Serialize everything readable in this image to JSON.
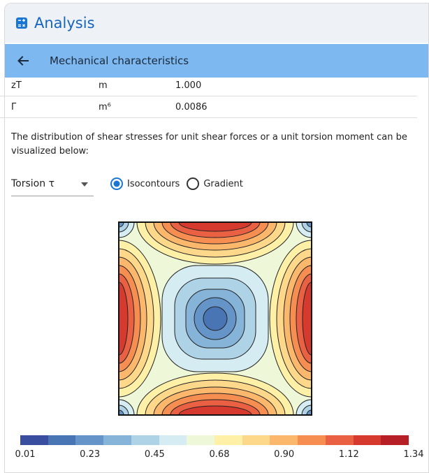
{
  "app": {
    "title": "Analysis",
    "icon": "calculator-icon"
  },
  "header": {
    "back_icon": "arrow-left-icon",
    "title": "Mechanical characteristics"
  },
  "properties": [
    {
      "name": "zT",
      "unit": "m",
      "value": "1.000"
    },
    {
      "name": "Γ",
      "unit": "m⁶",
      "value": "0.0086"
    }
  ],
  "description": "The distribution of shear stresses for unit shear forces or a unit torsion moment can be visualized below:",
  "controls": {
    "select_value": "Torsion τ",
    "radios": [
      {
        "label": "Isocontours",
        "selected": true
      },
      {
        "label": "Gradient",
        "selected": false
      }
    ],
    "accent": "#1976d2"
  },
  "colorbar": {
    "colors": [
      "#3a4ea0",
      "#4a75b5",
      "#6594c8",
      "#86b4d9",
      "#aed3e6",
      "#d4ecf2",
      "#eef7d8",
      "#fff0a8",
      "#fdd88a",
      "#fbb76c",
      "#f68e52",
      "#ea6042",
      "#d63a2f",
      "#b51f25"
    ],
    "ticks": [
      "0.01",
      "0.23",
      "0.45",
      "0.68",
      "0.90",
      "1.12",
      "1.34"
    ]
  }
}
